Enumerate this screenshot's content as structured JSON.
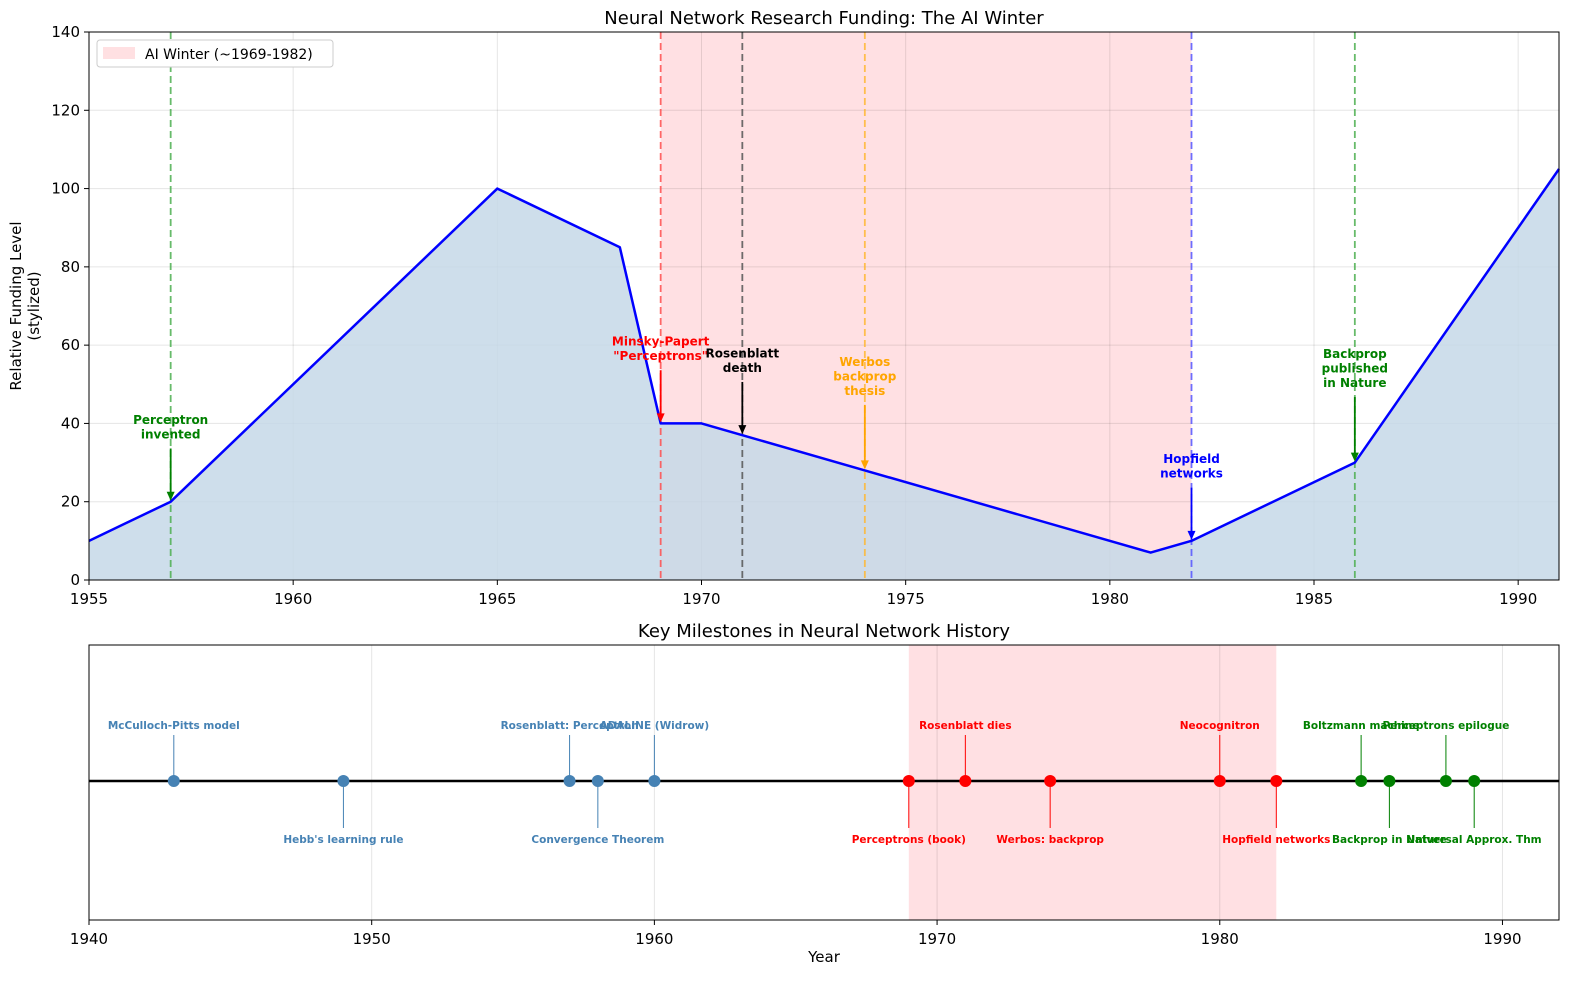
{
  "chart_data": [
    {
      "type": "area",
      "title": "Neural Network Research Funding: The AI Winter",
      "xlabel": "",
      "ylabel": "Relative Funding Level\n(stylized)",
      "xlim": [
        1955,
        1991
      ],
      "ylim": [
        0,
        140
      ],
      "xticks": [
        "1955",
        "1960",
        "1965",
        "1970",
        "1975",
        "1980",
        "1985",
        "1990"
      ],
      "yticks": [
        "0",
        "20",
        "40",
        "60",
        "80",
        "100",
        "120",
        "140"
      ],
      "grid": true,
      "legend_position": "top-left",
      "legend": [
        {
          "label": "AI Winter (~1969-1982)",
          "color": "#ffcccf"
        }
      ],
      "shaded_region": {
        "x": [
          1969,
          1982
        ],
        "color": "#ffe0e3"
      },
      "series": [
        {
          "line_color": "#0000ff",
          "fill_color": "#c5d8e8",
          "x": [
            1955,
            1957,
            1965,
            1968,
            1969,
            1970,
            1971,
            1974,
            1981,
            1982,
            1986,
            1991
          ],
          "y": [
            10,
            20,
            100,
            85,
            40,
            40,
            37,
            28,
            7,
            10,
            30,
            105
          ]
        }
      ],
      "vlines": [
        {
          "x": 1957,
          "color": "#4caf50"
        },
        {
          "x": 1969,
          "color": "#ff4d4d"
        },
        {
          "x": 1971,
          "color": "#555555"
        },
        {
          "x": 1974,
          "color": "#ffb733"
        },
        {
          "x": 1982,
          "color": "#5555ff"
        },
        {
          "x": 1986,
          "color": "#4caf50"
        }
      ],
      "annotations": [
        {
          "lines": [
            "Perceptron",
            "invented"
          ],
          "color": "#008000",
          "x": 1957,
          "y": 20,
          "text_y": 38
        },
        {
          "lines": [
            "Minsky-Papert",
            "\"Perceptrons\""
          ],
          "color": "#ff0000",
          "x": 1969,
          "y": 40,
          "text_y": 58
        },
        {
          "lines": [
            "Rosenblatt",
            "death"
          ],
          "color": "#000000",
          "x": 1971,
          "y": 37,
          "text_y": 55
        },
        {
          "lines": [
            "Werbos",
            "backprop",
            "thesis"
          ],
          "color": "#ffa500",
          "x": 1974,
          "y": 28,
          "text_y": 51
        },
        {
          "lines": [
            "Hopfield",
            "networks"
          ],
          "color": "#0000ff",
          "x": 1982,
          "y": 10,
          "text_y": 28
        },
        {
          "lines": [
            "Backprop",
            "published",
            "in Nature"
          ],
          "color": "#008000",
          "x": 1986,
          "y": 30,
          "text_y": 53
        }
      ]
    },
    {
      "type": "scatter",
      "title": "Key Milestones in Neural Network History",
      "xlabel": "Year",
      "ylabel": "",
      "xlim": [
        1940,
        1992
      ],
      "xticks": [
        "1940",
        "1950",
        "1960",
        "1970",
        "1980",
        "1990"
      ],
      "grid": true,
      "shaded_region": {
        "x": [
          1969,
          1982
        ],
        "color": "#ffe0e3"
      },
      "milestones": [
        {
          "year": 1943,
          "label": "McCulloch-Pitts model",
          "side": "up",
          "color": "#4682b4"
        },
        {
          "year": 1949,
          "label": "Hebb's learning rule",
          "side": "down",
          "color": "#4682b4"
        },
        {
          "year": 1957,
          "label": "Rosenblatt: Perceptron",
          "side": "up",
          "color": "#4682b4"
        },
        {
          "year": 1958,
          "label": "Convergence Theorem",
          "side": "down",
          "color": "#4682b4"
        },
        {
          "year": 1960,
          "label": "ADALINE (Widrow)",
          "side": "up",
          "color": "#4682b4"
        },
        {
          "year": 1969,
          "label": "Perceptrons (book)",
          "side": "down",
          "color": "#ff0000"
        },
        {
          "year": 1971,
          "label": "Rosenblatt dies",
          "side": "up",
          "color": "#ff0000"
        },
        {
          "year": 1974,
          "label": "Werbos: backprop",
          "side": "down",
          "color": "#ff0000"
        },
        {
          "year": 1980,
          "label": "Neocognitron",
          "side": "up",
          "color": "#ff0000"
        },
        {
          "year": 1982,
          "label": "Hopfield networks",
          "side": "down",
          "color": "#ff0000"
        },
        {
          "year": 1985,
          "label": "Boltzmann machine",
          "side": "up",
          "color": "#008000"
        },
        {
          "year": 1986,
          "label": "Backprop in Nature",
          "side": "down",
          "color": "#008000"
        },
        {
          "year": 1988,
          "label": "Perceptrons epilogue",
          "side": "up",
          "color": "#008000"
        },
        {
          "year": 1989,
          "label": "Universal Approx. Thm",
          "side": "down",
          "color": "#008000"
        }
      ]
    }
  ]
}
